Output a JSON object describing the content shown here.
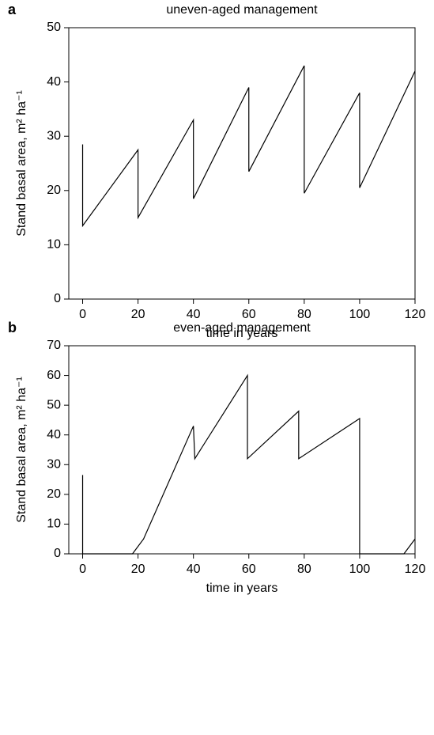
{
  "chart_data": [
    {
      "type": "line",
      "panel": "a",
      "title": "uneven-aged management",
      "xlabel": "time in years",
      "ylabel": "Stand basal area, m² ha⁻¹",
      "x": [
        0,
        0,
        20,
        20,
        40,
        40,
        60,
        60,
        80,
        80,
        100,
        100,
        120
      ],
      "series": [
        {
          "color": "#000000",
          "values": [
            28.5,
            13.5,
            27.5,
            15,
            33,
            18.5,
            39,
            23.5,
            43,
            19.5,
            38,
            20.5,
            42
          ]
        }
      ],
      "xlim": [
        -5,
        120
      ],
      "xticks": [
        0,
        20,
        40,
        60,
        80,
        100,
        120
      ],
      "ylim": [
        0,
        50
      ],
      "yticks": [
        0,
        10,
        20,
        30,
        40,
        50
      ]
    },
    {
      "type": "line",
      "panel": "b",
      "title": "even-aged management",
      "xlabel": "time in years",
      "ylabel": "Stand basal area, m² ha⁻¹",
      "x": [
        0,
        0,
        18,
        22,
        40,
        40.5,
        59.5,
        59.5,
        78,
        78,
        100,
        100,
        116,
        120
      ],
      "series": [
        {
          "color": "#000000",
          "values": [
            26.5,
            0,
            0,
            5,
            43,
            32,
            60,
            32,
            48,
            32,
            45.5,
            0,
            0,
            5
          ]
        }
      ],
      "xlim": [
        -5,
        120
      ],
      "xticks": [
        0,
        20,
        40,
        60,
        80,
        100,
        120
      ],
      "ylim": [
        0,
        70
      ],
      "yticks": [
        0,
        10,
        20,
        30,
        40,
        50,
        60,
        70
      ]
    }
  ]
}
